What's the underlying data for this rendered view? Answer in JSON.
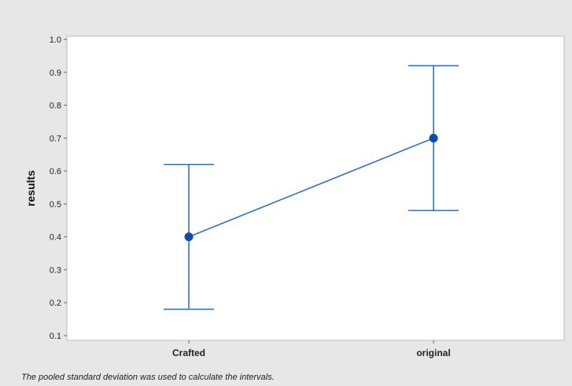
{
  "chart_data": {
    "type": "line",
    "categories": [
      "Crafted",
      "original"
    ],
    "series": [
      {
        "values": [
          0.4,
          0.7
        ],
        "lower": [
          0.18,
          0.48
        ],
        "upper": [
          0.62,
          0.92
        ],
        "color": "#2f73c6",
        "marker_color": "#0a4ea8"
      }
    ],
    "ylabel": "results",
    "ylim": [
      0.1,
      1.0
    ],
    "yticks": [
      "0.1",
      "0.2",
      "0.3",
      "0.4",
      "0.5",
      "0.6",
      "0.7",
      "0.8",
      "0.9",
      "1.0"
    ],
    "grid": false,
    "footnote": "The pooled standard deviation was used to calculate the intervals.",
    "background_color": "#e7e7e7",
    "plot_background_color": "#ffffff"
  }
}
